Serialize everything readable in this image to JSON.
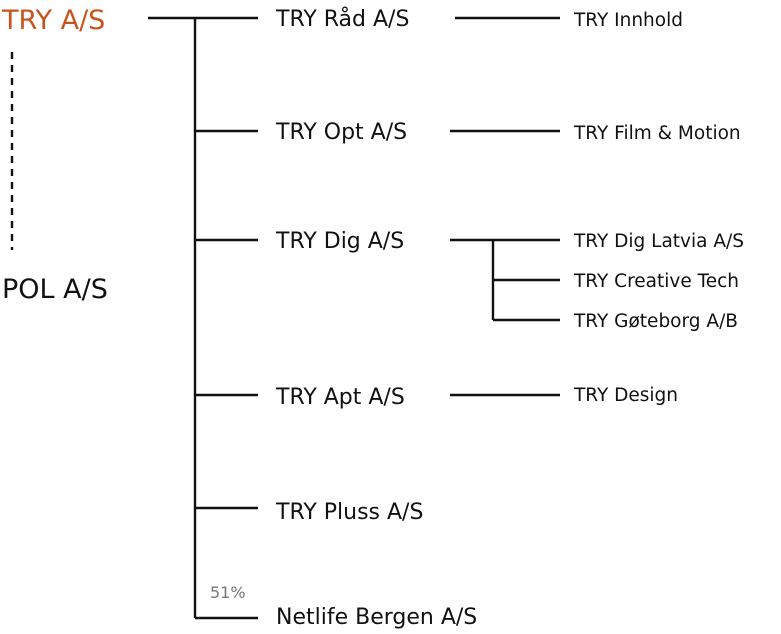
{
  "root": {
    "label": "TRY A/S",
    "color": "#c8531c"
  },
  "sibling": {
    "label": "POL A/S"
  },
  "ownership_note": "51%",
  "level1": [
    {
      "label": "TRY Råd A/S"
    },
    {
      "label": "TRY Opt A/S"
    },
    {
      "label": "TRY Dig A/S"
    },
    {
      "label": "TRY Apt A/S"
    },
    {
      "label": "TRY Pluss A/S"
    },
    {
      "label": "Netlife Bergen A/S"
    }
  ],
  "level2": {
    "rad": [
      {
        "label": "TRY Innhold"
      }
    ],
    "opt": [
      {
        "label": "TRY Film & Motion"
      }
    ],
    "dig": [
      {
        "label": "TRY Dig Latvia A/S"
      },
      {
        "label": "TRY Creative Tech"
      },
      {
        "label": "TRY Gøteborg A/B"
      }
    ],
    "apt": [
      {
        "label": "TRY Design"
      }
    ]
  }
}
